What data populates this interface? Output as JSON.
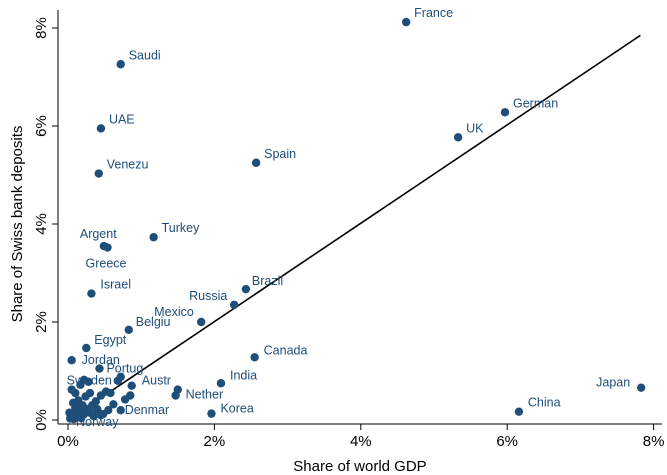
{
  "chart_data": {
    "type": "scatter",
    "xlabel": "Share of world GDP",
    "ylabel": "Share of Swiss bank deposits",
    "xlim": [
      0,
      8
    ],
    "ylim": [
      0,
      8
    ],
    "x_ticks": [
      0,
      2,
      4,
      6,
      8
    ],
    "y_ticks": [
      0,
      2,
      4,
      6,
      8
    ],
    "x_tick_labels": [
      "0%",
      "2%",
      "4%",
      "6%",
      "8%"
    ],
    "y_tick_labels": [
      "0%",
      "2%",
      "4%",
      "6%",
      "8%"
    ],
    "grid": false,
    "fit_line": {
      "x": [
        0,
        7.82
      ],
      "y": [
        0,
        7.85
      ]
    },
    "labeled_points": [
      {
        "label": "France",
        "x": 4.62,
        "y": 8.12
      },
      {
        "label": "Saudi",
        "x": 0.72,
        "y": 7.26
      },
      {
        "label": "German",
        "x": 5.97,
        "y": 6.28
      },
      {
        "label": "UAE",
        "x": 0.45,
        "y": 5.95
      },
      {
        "label": "UK",
        "x": 5.33,
        "y": 5.77
      },
      {
        "label": "Spain",
        "x": 2.57,
        "y": 5.25
      },
      {
        "label": "Venezu",
        "x": 0.42,
        "y": 5.03
      },
      {
        "label": "Turkey",
        "x": 1.17,
        "y": 3.73
      },
      {
        "label": "Argent",
        "x": 0.49,
        "y": 3.55
      },
      {
        "label": "Greece",
        "x": 0.54,
        "y": 3.52
      },
      {
        "label": "Brazil",
        "x": 2.43,
        "y": 2.67
      },
      {
        "label": "Israel",
        "x": 0.32,
        "y": 2.58
      },
      {
        "label": "Russia",
        "x": 2.27,
        "y": 2.35
      },
      {
        "label": "Mexico",
        "x": 1.82,
        "y": 2.0
      },
      {
        "label": "Belgiu",
        "x": 0.83,
        "y": 1.84
      },
      {
        "label": "Egypt",
        "x": 0.25,
        "y": 1.47
      },
      {
        "label": "Canada",
        "x": 2.55,
        "y": 1.28
      },
      {
        "label": "Jordan",
        "x": 0.05,
        "y": 1.22
      },
      {
        "label": "Portug",
        "x": 0.43,
        "y": 1.05
      },
      {
        "label": "India",
        "x": 2.09,
        "y": 0.75
      },
      {
        "label": "Sweden",
        "x": 0.87,
        "y": 0.7
      },
      {
        "label": "Austr",
        "x": 1.5,
        "y": 0.62
      },
      {
        "label": "Nether",
        "x": 1.47,
        "y": 0.5
      },
      {
        "label": "Japan",
        "x": 7.83,
        "y": 0.66
      },
      {
        "label": "China",
        "x": 6.16,
        "y": 0.17
      },
      {
        "label": "Korea",
        "x": 1.96,
        "y": 0.13
      },
      {
        "label": "Denmar",
        "x": 0.72,
        "y": 0.2
      },
      {
        "label": "Norway",
        "x": 0.48,
        "y": 0.12
      }
    ],
    "unlabeled_points": [
      {
        "x": 0.05,
        "y": 0.62
      },
      {
        "x": 0.1,
        "y": 0.55
      },
      {
        "x": 0.14,
        "y": 0.4
      },
      {
        "x": 0.17,
        "y": 0.72
      },
      {
        "x": 0.22,
        "y": 0.82
      },
      {
        "x": 0.28,
        "y": 0.78
      },
      {
        "x": 0.3,
        "y": 0.55
      },
      {
        "x": 0.24,
        "y": 0.48
      },
      {
        "x": 0.33,
        "y": 0.3
      },
      {
        "x": 0.38,
        "y": 0.38
      },
      {
        "x": 0.45,
        "y": 0.5
      },
      {
        "x": 0.52,
        "y": 0.58
      },
      {
        "x": 0.58,
        "y": 0.55
      },
      {
        "x": 0.62,
        "y": 0.32
      },
      {
        "x": 0.68,
        "y": 0.8
      },
      {
        "x": 0.72,
        "y": 0.88
      },
      {
        "x": 0.78,
        "y": 0.42
      },
      {
        "x": 0.85,
        "y": 0.5
      },
      {
        "x": 0.55,
        "y": 0.2
      },
      {
        "x": 0.4,
        "y": 0.22
      },
      {
        "x": 0.3,
        "y": 0.15
      },
      {
        "x": 0.22,
        "y": 0.12
      },
      {
        "x": 0.15,
        "y": 0.18
      },
      {
        "x": 0.1,
        "y": 0.25
      },
      {
        "x": 0.06,
        "y": 0.1
      },
      {
        "x": 0.04,
        "y": 0.05
      },
      {
        "x": 0.08,
        "y": 0.02
      },
      {
        "x": 0.12,
        "y": 0.06
      },
      {
        "x": 0.18,
        "y": 0.04
      },
      {
        "x": 0.2,
        "y": 0.3
      },
      {
        "x": 0.26,
        "y": 0.22
      },
      {
        "x": 0.35,
        "y": 0.08
      },
      {
        "x": 0.02,
        "y": 0.15
      },
      {
        "x": 0.07,
        "y": 0.35
      },
      {
        "x": 0.45,
        "y": 0.1
      },
      {
        "x": 0.16,
        "y": 0.1
      },
      {
        "x": 0.11,
        "y": 0.14
      },
      {
        "x": 0.03,
        "y": 0.03
      }
    ]
  }
}
